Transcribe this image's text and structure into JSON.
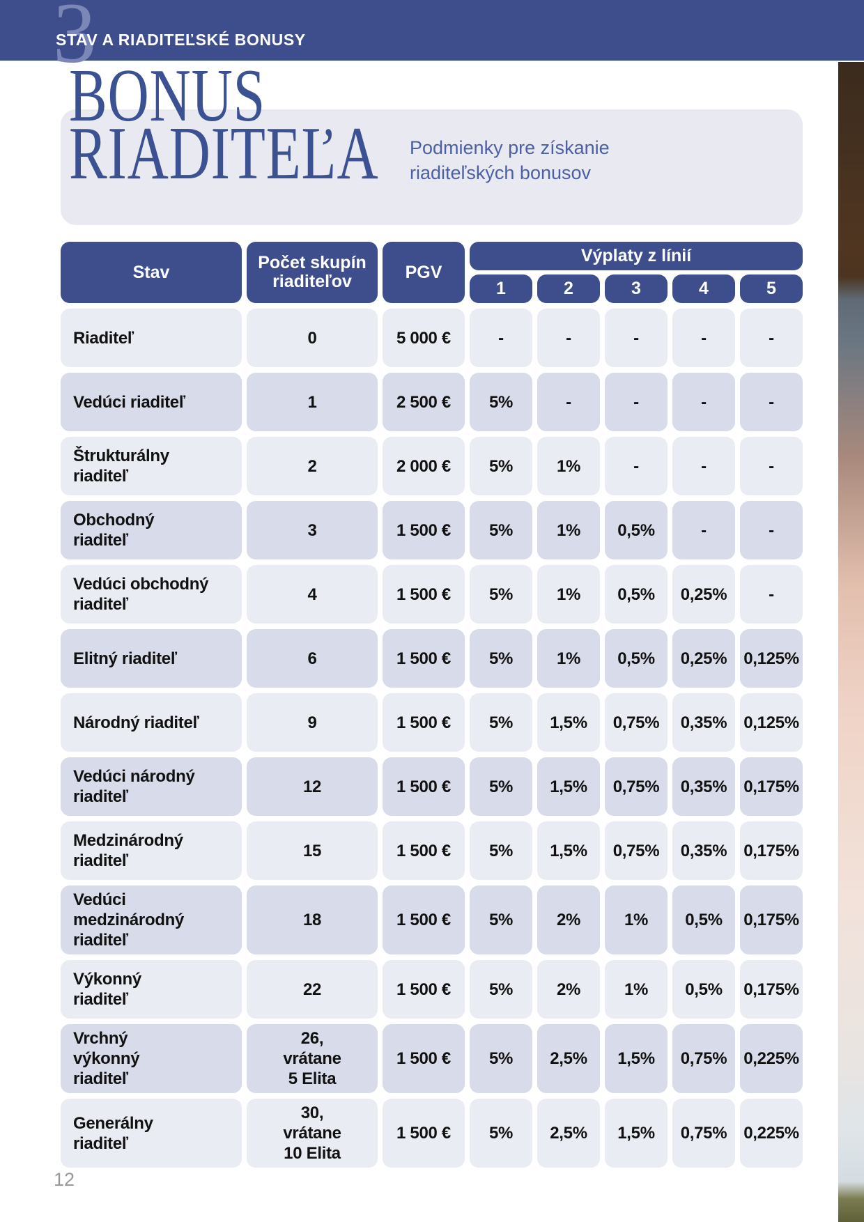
{
  "top_bar": {
    "section_number": "3",
    "section_title": "STAV A RIADITEĽSKÉ BONUSY"
  },
  "title_block": {
    "title": "BONUS\nRIADITEĽA",
    "subtitle": "Podmienky pre získanie\nriaditeľských bonusov"
  },
  "colors": {
    "header_blue": "#3e4d8b",
    "title_blue": "#3c5192",
    "subtitle_blue": "#4a5fa5",
    "title_panel_gray": "#e9eaf1",
    "row_light": "#eaecf3",
    "row_dark": "#d8dcea"
  },
  "table": {
    "headers": {
      "stav": "Stav",
      "pocet": "Počet skupín\nriaditeľov",
      "pgv": "PGV",
      "vyplaty": "Výplaty z línií",
      "lines": [
        "1",
        "2",
        "3",
        "4",
        "5"
      ]
    },
    "rows": [
      {
        "stav": "Riaditeľ",
        "pocet": "0",
        "pgv": "5 000 €",
        "lines": [
          "-",
          "-",
          "-",
          "-",
          "-"
        ]
      },
      {
        "stav": "Vedúci riaditeľ",
        "pocet": "1",
        "pgv": "2 500 €",
        "lines": [
          "5%",
          "-",
          "-",
          "-",
          "-"
        ]
      },
      {
        "stav": "Štrukturálny\nriaditeľ",
        "pocet": "2",
        "pgv": "2 000 €",
        "lines": [
          "5%",
          "1%",
          "-",
          "-",
          "-"
        ]
      },
      {
        "stav": "Obchodný\nriaditeľ",
        "pocet": "3",
        "pgv": "1 500 €",
        "lines": [
          "5%",
          "1%",
          "0,5%",
          "-",
          "-"
        ]
      },
      {
        "stav": "Vedúci obchodný\nriaditeľ",
        "pocet": "4",
        "pgv": "1 500 €",
        "lines": [
          "5%",
          "1%",
          "0,5%",
          "0,25%",
          "-"
        ]
      },
      {
        "stav": "Elitný riaditeľ",
        "pocet": "6",
        "pgv": "1 500 €",
        "lines": [
          "5%",
          "1%",
          "0,5%",
          "0,25%",
          "0,125%"
        ]
      },
      {
        "stav": "Národný riaditeľ",
        "pocet": "9",
        "pgv": "1 500 €",
        "lines": [
          "5%",
          "1,5%",
          "0,75%",
          "0,35%",
          "0,125%"
        ]
      },
      {
        "stav": "Vedúci národný\nriaditeľ",
        "pocet": "12",
        "pgv": "1 500 €",
        "lines": [
          "5%",
          "1,5%",
          "0,75%",
          "0,35%",
          "0,175%"
        ]
      },
      {
        "stav": "Medzinárodný\nriaditeľ",
        "pocet": "15",
        "pgv": "1 500 €",
        "lines": [
          "5%",
          "1,5%",
          "0,75%",
          "0,35%",
          "0,175%"
        ]
      },
      {
        "stav": "Vedúci\nmedzinárodný\nriaditeľ",
        "pocet": "18",
        "pgv": "1 500 €",
        "lines": [
          "5%",
          "2%",
          "1%",
          "0,5%",
          "0,175%"
        ]
      },
      {
        "stav": "Výkonný\nriaditeľ",
        "pocet": "22",
        "pgv": "1 500 €",
        "lines": [
          "5%",
          "2%",
          "1%",
          "0,5%",
          "0,175%"
        ]
      },
      {
        "stav": "Vrchný\nvýkonný\nriaditeľ",
        "pocet": "26,\nvrátane\n5 Elita",
        "pgv": "1 500 €",
        "lines": [
          "5%",
          "2,5%",
          "1,5%",
          "0,75%",
          "0,225%"
        ]
      },
      {
        "stav": "Generálny\nriaditeľ",
        "pocet": "30,\nvrátane\n10 Elita",
        "pgv": "1 500 €",
        "lines": [
          "5%",
          "2,5%",
          "1,5%",
          "0,75%",
          "0,225%"
        ]
      }
    ]
  },
  "footer": {
    "page_number": "12"
  }
}
